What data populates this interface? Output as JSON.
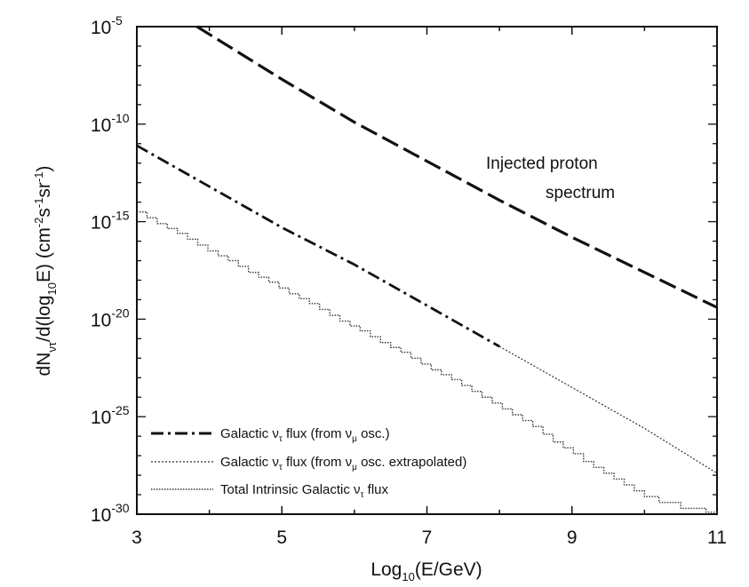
{
  "chart_data": {
    "type": "line",
    "xlabel": "Log10(E/GeV)",
    "ylabel": "dN_ντ/d(log10E) (cm^-2 s^-1 sr^-1)",
    "x_range": [
      3,
      11
    ],
    "y_log_range": [
      -30,
      -5
    ],
    "y_scale": "log",
    "grid": false,
    "legend_position": "bottom-left",
    "x_ticks": [
      "3",
      "5",
      "7",
      "9",
      "11"
    ],
    "y_ticks": [
      {
        "base": "10",
        "exp": "-5",
        "value": -5
      },
      {
        "base": "10",
        "exp": "-10",
        "value": -10
      },
      {
        "base": "10",
        "exp": "-15",
        "value": -15
      },
      {
        "base": "10",
        "exp": "-20",
        "value": -20
      },
      {
        "base": "10",
        "exp": "-25",
        "value": -25
      },
      {
        "base": "10",
        "exp": "-30",
        "value": -30
      }
    ],
    "annotation": {
      "line1": "Injected proton",
      "line2": "spectrum"
    },
    "series": [
      {
        "name": "Injected proton spectrum",
        "style": "long-dash",
        "x": [
          3.83,
          5,
          6,
          6.8,
          8,
          9,
          10,
          11
        ],
        "y_log10": [
          -5.0,
          -7.7,
          -9.9,
          -11.5,
          -13.9,
          -15.8,
          -17.6,
          -19.4
        ]
      },
      {
        "name": "Galactic ντ flux (from νμ osc.)",
        "style": "dash-dot",
        "x": [
          3,
          4,
          5,
          6,
          7,
          8
        ],
        "y_log10": [
          -11.1,
          -13.2,
          -15.3,
          -17.2,
          -19.3,
          -21.4
        ]
      },
      {
        "name": "Galactic ντ flux (from νμ osc. extrapolated)",
        "style": "dotted",
        "x": [
          8,
          9,
          10,
          11
        ],
        "y_log10": [
          -21.4,
          -23.5,
          -25.6,
          -27.9
        ]
      },
      {
        "name": "Total Intrinsic Galactic ντ flux",
        "style": "staircase",
        "x": [
          3.0,
          3.14,
          3.28,
          3.42,
          3.56,
          3.7,
          3.84,
          3.98,
          4.12,
          4.26,
          4.4,
          4.54,
          4.68,
          4.82,
          4.96,
          5.1,
          5.24,
          5.38,
          5.52,
          5.66,
          5.8,
          5.94,
          6.08,
          6.22,
          6.36,
          6.5,
          6.64,
          6.78,
          6.92,
          7.06,
          7.2,
          7.34,
          7.48,
          7.62,
          7.76,
          7.9,
          8.04,
          8.18,
          8.32,
          8.46,
          8.6,
          8.74,
          8.88,
          9.02,
          9.16,
          9.3,
          9.44,
          9.58,
          9.72,
          9.86,
          10.0,
          10.2,
          10.5,
          10.85,
          11.0
        ],
        "y_log10": [
          -14.5,
          -14.8,
          -15.1,
          -15.35,
          -15.6,
          -15.9,
          -16.2,
          -16.5,
          -16.75,
          -17.0,
          -17.3,
          -17.6,
          -17.85,
          -18.1,
          -18.4,
          -18.7,
          -18.95,
          -19.2,
          -19.5,
          -19.8,
          -20.1,
          -20.35,
          -20.6,
          -20.9,
          -21.2,
          -21.45,
          -21.7,
          -22.0,
          -22.3,
          -22.6,
          -22.85,
          -23.1,
          -23.4,
          -23.7,
          -24.0,
          -24.3,
          -24.6,
          -24.9,
          -25.2,
          -25.5,
          -25.9,
          -26.3,
          -26.6,
          -26.9,
          -27.3,
          -27.6,
          -27.9,
          -28.2,
          -28.5,
          -28.8,
          -29.1,
          -29.4,
          -29.7,
          -29.9,
          -30.0
        ]
      }
    ]
  }
}
